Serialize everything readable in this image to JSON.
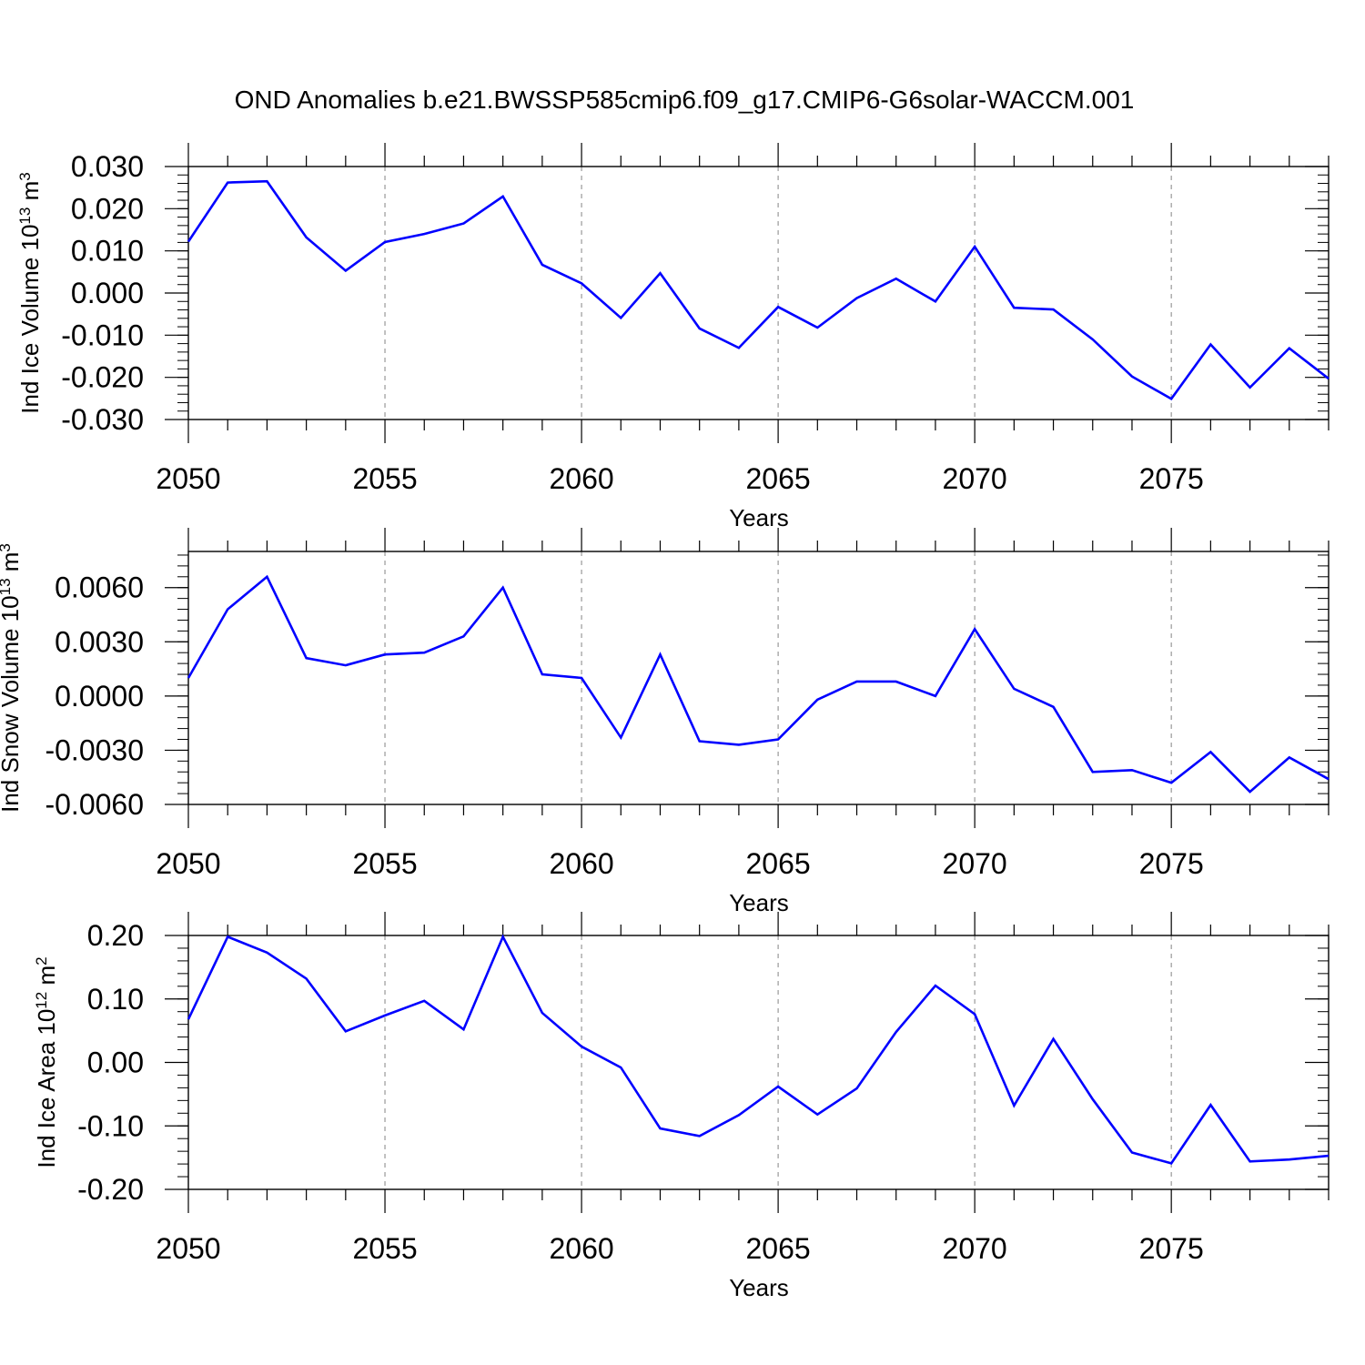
{
  "figure": {
    "title": "OND Anomalies b.e21.BWSSP585cmip6.f09_g17.CMIP6-G6solar-WACCM.001"
  },
  "chart_data": [
    {
      "type": "line",
      "title": "",
      "xlabel": "Years",
      "ylabel": {
        "base": "Ind Ice Volume 10",
        "exponent": "13",
        "unit": " m",
        "unit_exponent": "3"
      },
      "x": [
        2050,
        2051,
        2052,
        2053,
        2054,
        2055,
        2056,
        2057,
        2058,
        2059,
        2060,
        2061,
        2062,
        2063,
        2064,
        2065,
        2066,
        2067,
        2068,
        2069,
        2070,
        2071,
        2072,
        2073,
        2074,
        2075,
        2076,
        2077,
        2078,
        2079
      ],
      "series": [
        {
          "color": "#0000ff",
          "values": [
            0.0122,
            0.0262,
            0.0265,
            0.0132,
            0.0053,
            0.0121,
            0.014,
            0.0165,
            0.0229,
            0.0067,
            0.0023,
            -0.0059,
            0.0047,
            -0.0084,
            -0.013,
            -0.0033,
            -0.0082,
            -0.0012,
            0.0034,
            -0.002,
            0.011,
            -0.0035,
            -0.0039,
            -0.011,
            -0.0198,
            -0.0251,
            -0.0122,
            -0.0224,
            -0.0131,
            -0.0203
          ]
        }
      ],
      "xlim": [
        2050,
        2079
      ],
      "ylim": [
        -0.03,
        0.03
      ],
      "x_ticks": [
        "2050",
        "2055",
        "2060",
        "2065",
        "2070",
        "2075"
      ],
      "y_ticks": [
        "0.030",
        "0.020",
        "0.010",
        "0.000",
        "-0.010",
        "-0.020",
        "-0.030"
      ],
      "y_tick_values": [
        0.03,
        0.02,
        0.01,
        0.0,
        -0.01,
        -0.02,
        -0.03
      ],
      "grid": "dashed vertical at major x ticks",
      "legend": "none"
    },
    {
      "type": "line",
      "title": "",
      "xlabel": "Years",
      "ylabel": {
        "base": "Ind Snow Volume 10",
        "exponent": "13",
        "unit": " m",
        "unit_exponent": "3"
      },
      "x": [
        2050,
        2051,
        2052,
        2053,
        2054,
        2055,
        2056,
        2057,
        2058,
        2059,
        2060,
        2061,
        2062,
        2063,
        2064,
        2065,
        2066,
        2067,
        2068,
        2069,
        2070,
        2071,
        2072,
        2073,
        2074,
        2075,
        2076,
        2077,
        2078,
        2079
      ],
      "series": [
        {
          "color": "#0000ff",
          "values": [
            0.001,
            0.0048,
            0.0066,
            0.0021,
            0.0017,
            0.0023,
            0.0024,
            0.0033,
            0.006,
            0.0012,
            0.001,
            -0.0023,
            0.0023,
            -0.0025,
            -0.0027,
            -0.0024,
            -0.0002,
            0.0008,
            0.0008,
            0.0,
            0.0037,
            0.0004,
            -0.0006,
            -0.0042,
            -0.0041,
            -0.0048,
            -0.0031,
            -0.0053,
            -0.0034,
            -0.0046
          ]
        }
      ],
      "xlim": [
        2050,
        2079
      ],
      "ylim": [
        -0.006,
        0.008
      ],
      "x_ticks": [
        "2050",
        "2055",
        "2060",
        "2065",
        "2070",
        "2075"
      ],
      "y_ticks": [
        "0.0060",
        "0.0030",
        "0.0000",
        "-0.0030",
        "-0.0060"
      ],
      "y_tick_values": [
        0.006,
        0.003,
        0.0,
        -0.003,
        -0.006
      ],
      "grid": "dashed vertical at major x ticks",
      "legend": "none"
    },
    {
      "type": "line",
      "title": "",
      "xlabel": "Years",
      "ylabel": {
        "base": "Ind Ice Area 10",
        "exponent": "12",
        "unit": " m",
        "unit_exponent": "2"
      },
      "x": [
        2050,
        2051,
        2052,
        2053,
        2054,
        2055,
        2056,
        2057,
        2058,
        2059,
        2060,
        2061,
        2062,
        2063,
        2064,
        2065,
        2066,
        2067,
        2068,
        2069,
        2070,
        2071,
        2072,
        2073,
        2074,
        2075,
        2076,
        2077,
        2078,
        2079
      ],
      "series": [
        {
          "color": "#0000ff",
          "values": [
            0.068,
            0.198,
            0.173,
            0.132,
            0.049,
            0.074,
            0.097,
            0.052,
            0.198,
            0.078,
            0.025,
            -0.008,
            -0.104,
            -0.116,
            -0.083,
            -0.038,
            -0.082,
            -0.041,
            0.048,
            0.121,
            0.076,
            -0.068,
            0.037,
            -0.058,
            -0.142,
            -0.159,
            -0.067,
            -0.156,
            -0.153,
            -0.147
          ]
        }
      ],
      "xlim": [
        2050,
        2079
      ],
      "ylim": [
        -0.2,
        0.2
      ],
      "x_ticks": [
        "2050",
        "2055",
        "2060",
        "2065",
        "2070",
        "2075"
      ],
      "y_ticks": [
        "0.20",
        "0.10",
        "0.00",
        "-0.10",
        "-0.20"
      ],
      "y_tick_values": [
        0.2,
        0.1,
        0.0,
        -0.1,
        -0.2
      ],
      "grid": "dashed vertical at major x ticks",
      "legend": "none"
    }
  ]
}
